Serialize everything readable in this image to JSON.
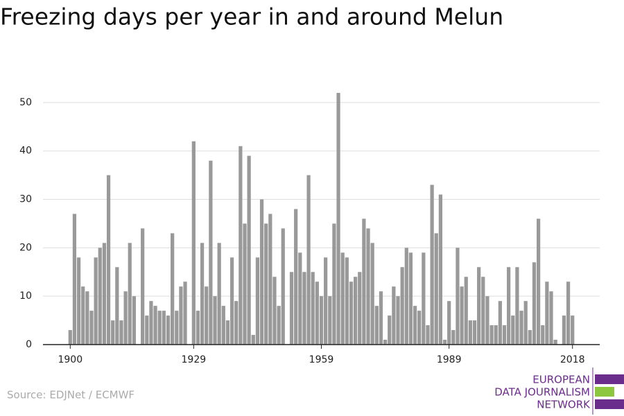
{
  "chart_data": {
    "type": "bar",
    "title": "Freezing days per year in and around Melun",
    "source": "Source: EDJNet / ECMWF",
    "logo": [
      "EUROPEAN",
      "DATA JOURNALISM",
      "NETWORK"
    ],
    "color": "#999999",
    "grid": true,
    "x": [
      1900,
      1901,
      1902,
      1903,
      1904,
      1905,
      1906,
      1907,
      1908,
      1909,
      1910,
      1911,
      1912,
      1913,
      1914,
      1915,
      1916,
      1917,
      1918,
      1919,
      1920,
      1921,
      1922,
      1923,
      1924,
      1925,
      1926,
      1927,
      1928,
      1929,
      1930,
      1931,
      1932,
      1933,
      1934,
      1935,
      1936,
      1937,
      1938,
      1939,
      1940,
      1941,
      1942,
      1943,
      1944,
      1945,
      1946,
      1947,
      1948,
      1949,
      1950,
      1951,
      1952,
      1953,
      1954,
      1955,
      1956,
      1957,
      1958,
      1959,
      1960,
      1961,
      1962,
      1963,
      1964,
      1965,
      1966,
      1967,
      1968,
      1969,
      1970,
      1971,
      1972,
      1973,
      1974,
      1975,
      1976,
      1977,
      1978,
      1979,
      1980,
      1981,
      1982,
      1983,
      1984,
      1985,
      1986,
      1987,
      1988,
      1989,
      1990,
      1991,
      1992,
      1993,
      1994,
      1995,
      1996,
      1997,
      1998,
      1999,
      2000,
      2001,
      2002,
      2003,
      2004,
      2005,
      2006,
      2007,
      2008,
      2009,
      2010,
      2011,
      2012,
      2013,
      2014,
      2015,
      2016,
      2017,
      2018
    ],
    "values": [
      3,
      27,
      18,
      12,
      11,
      7,
      18,
      20,
      21,
      35,
      5,
      16,
      5,
      11,
      21,
      10,
      0,
      24,
      6,
      9,
      8,
      7,
      7,
      6,
      23,
      7,
      12,
      13,
      0,
      42,
      7,
      21,
      12,
      38,
      10,
      21,
      8,
      5,
      18,
      9,
      41,
      25,
      39,
      2,
      18,
      30,
      25,
      27,
      14,
      8,
      24,
      0,
      15,
      28,
      19,
      15,
      35,
      15,
      13,
      10,
      18,
      10,
      25,
      52,
      19,
      18,
      13,
      14,
      15,
      26,
      24,
      21,
      8,
      11,
      1,
      6,
      12,
      10,
      16,
      20,
      19,
      8,
      7,
      19,
      4,
      33,
      23,
      31,
      1,
      9,
      3,
      20,
      12,
      14,
      5,
      5,
      16,
      14,
      10,
      4,
      4,
      9,
      4,
      16,
      6,
      16,
      7,
      9,
      3,
      17,
      26,
      4,
      13,
      11,
      1,
      0,
      6,
      13,
      6
    ],
    "xlim": [
      1893.6,
      2024.4
    ],
    "xticks": [
      1900,
      1929,
      1959,
      1989,
      2018
    ],
    "ylim": [
      0,
      55
    ],
    "yticks": [
      0,
      10,
      20,
      30,
      40,
      50
    ]
  }
}
